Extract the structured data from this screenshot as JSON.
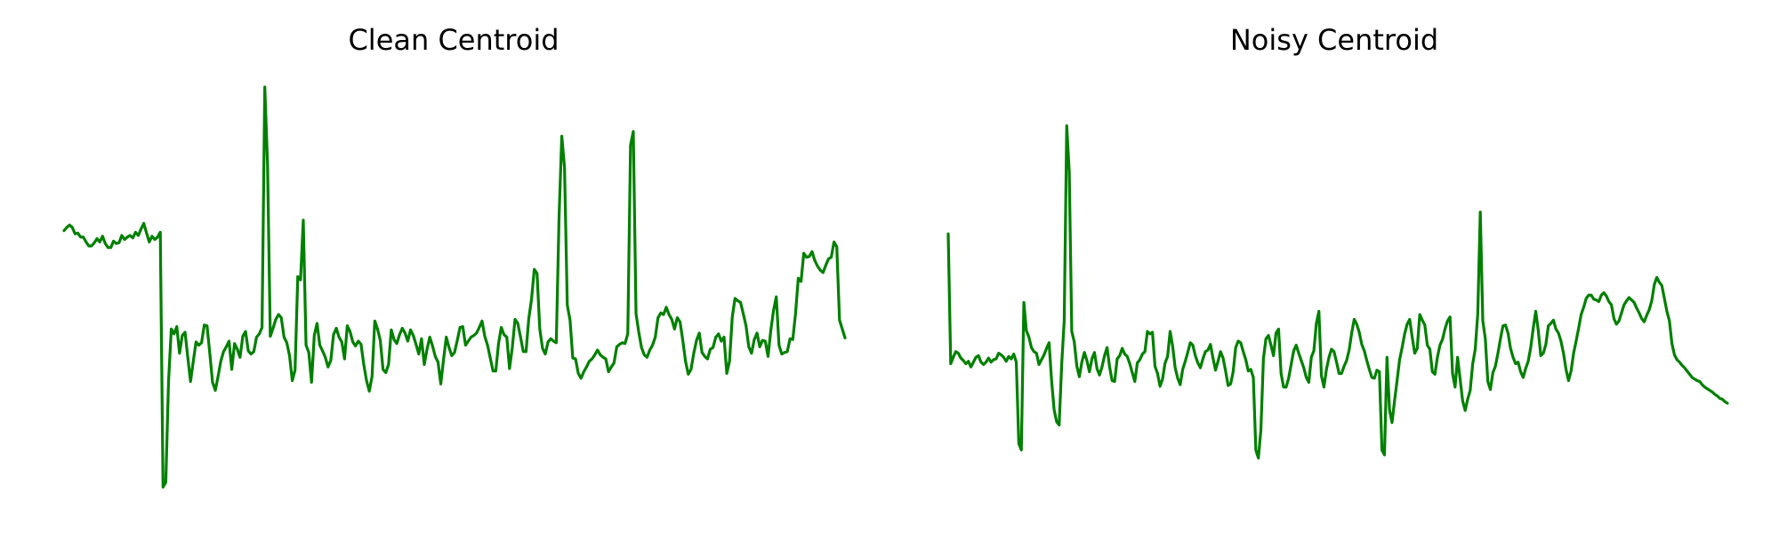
{
  "line_color": "#008000",
  "chart_data": [
    {
      "type": "line",
      "title": "Clean Centroid",
      "xlabel": "",
      "ylabel": "",
      "axes_visible": false,
      "grid": false,
      "ylim": [
        0,
        1
      ],
      "series": [
        {
          "values": [
            0.644,
            0.652,
            0.658,
            0.652,
            0.636,
            0.638,
            0.628,
            0.628,
            0.616,
            0.606,
            0.606,
            0.614,
            0.624,
            0.616,
            0.63,
            0.612,
            0.602,
            0.602,
            0.618,
            0.612,
            0.614,
            0.632,
            0.622,
            0.628,
            0.632,
            0.626,
            0.64,
            0.632,
            0.648,
            0.662,
            0.638,
            0.616,
            0.63,
            0.622,
            0.628,
            0.64,
            0.008,
            0.02,
            0.27,
            0.4,
            0.388,
            0.406,
            0.34,
            0.384,
            0.392,
            0.33,
            0.27,
            0.32,
            0.368,
            0.36,
            0.366,
            0.41,
            0.408,
            0.34,
            0.268,
            0.248,
            0.282,
            0.32,
            0.344,
            0.356,
            0.37,
            0.3,
            0.364,
            0.35,
            0.33,
            0.382,
            0.394,
            0.346,
            0.338,
            0.344,
            0.38,
            0.388,
            0.404,
            1.0,
            0.81,
            0.382,
            0.402,
            0.424,
            0.436,
            0.428,
            0.38,
            0.366,
            0.334,
            0.272,
            0.298,
            0.53,
            0.522,
            0.67,
            0.36,
            0.342,
            0.268,
            0.384,
            0.414,
            0.36,
            0.346,
            0.33,
            0.306,
            0.322,
            0.386,
            0.402,
            0.38,
            0.368,
            0.326,
            0.408,
            0.394,
            0.368,
            0.358,
            0.37,
            0.362,
            0.312,
            0.272,
            0.246,
            0.282,
            0.42,
            0.4,
            0.372,
            0.3,
            0.292,
            0.312,
            0.398,
            0.374,
            0.364,
            0.386,
            0.402,
            0.39,
            0.37,
            0.398,
            0.384,
            0.362,
            0.338,
            0.376,
            0.312,
            0.35,
            0.38,
            0.358,
            0.332,
            0.318,
            0.264,
            0.324,
            0.38,
            0.354,
            0.334,
            0.342,
            0.372,
            0.404,
            0.406,
            0.36,
            0.37,
            0.38,
            0.384,
            0.39,
            0.404,
            0.42,
            0.382,
            0.36,
            0.328,
            0.296,
            0.296,
            0.364,
            0.404,
            0.386,
            0.38,
            0.302,
            0.354,
            0.424,
            0.414,
            0.38,
            0.344,
            0.344,
            0.426,
            0.474,
            0.548,
            0.538,
            0.4,
            0.352,
            0.338,
            0.368,
            0.376,
            0.37,
            0.366,
            0.676,
            0.878,
            0.8,
            0.46,
            0.422,
            0.328,
            0.326,
            0.29,
            0.278,
            0.294,
            0.306,
            0.32,
            0.326,
            0.336,
            0.348,
            0.336,
            0.33,
            0.326,
            0.294,
            0.306,
            0.316,
            0.356,
            0.362,
            0.366,
            0.364,
            0.388,
            0.856,
            0.89,
            0.438,
            0.392,
            0.354,
            0.336,
            0.33,
            0.348,
            0.36,
            0.38,
            0.428,
            0.44,
            0.436,
            0.454,
            0.436,
            0.424,
            0.4,
            0.428,
            0.418,
            0.372,
            0.32,
            0.288,
            0.3,
            0.34,
            0.372,
            0.39,
            0.342,
            0.332,
            0.326,
            0.35,
            0.354,
            0.38,
            0.388,
            0.37,
            0.38,
            0.29,
            0.32,
            0.43,
            0.476,
            0.47,
            0.466,
            0.438,
            0.408,
            0.356,
            0.34,
            0.374,
            0.39,
            0.356,
            0.372,
            0.37,
            0.332,
            0.396,
            0.446,
            0.48,
            0.36,
            0.338,
            0.342,
            0.344,
            0.376,
            0.374,
            0.438,
            0.526,
            0.518,
            0.588,
            0.578,
            0.58,
            0.592,
            0.57,
            0.556,
            0.546,
            0.54,
            0.558,
            0.574,
            0.578,
            0.616,
            0.604,
            0.422,
            0.4,
            0.378
          ]
        }
      ]
    },
    {
      "type": "line",
      "title": "Noisy Centroid",
      "xlabel": "",
      "ylabel": "",
      "axes_visible": false,
      "grid": false,
      "ylim": [
        0,
        1
      ],
      "series": [
        {
          "values": [
            0.636,
            0.314,
            0.33,
            0.344,
            0.34,
            0.328,
            0.322,
            0.314,
            0.32,
            0.306,
            0.318,
            0.33,
            0.334,
            0.318,
            0.312,
            0.318,
            0.328,
            0.318,
            0.324,
            0.326,
            0.34,
            0.336,
            0.33,
            0.32,
            0.332,
            0.326,
            0.338,
            0.318,
            0.116,
            0.1,
            0.466,
            0.396,
            0.38,
            0.354,
            0.344,
            0.34,
            0.312,
            0.324,
            0.336,
            0.352,
            0.366,
            0.272,
            0.2,
            0.17,
            0.162,
            0.312,
            0.42,
            0.904,
            0.79,
            0.394,
            0.368,
            0.308,
            0.282,
            0.318,
            0.342,
            0.322,
            0.294,
            0.326,
            0.342,
            0.302,
            0.286,
            0.306,
            0.334,
            0.354,
            0.306,
            0.272,
            0.27,
            0.326,
            0.334,
            0.352,
            0.338,
            0.332,
            0.314,
            0.292,
            0.27,
            0.316,
            0.324,
            0.338,
            0.344,
            0.394,
            0.388,
            0.392,
            0.308,
            0.29,
            0.258,
            0.276,
            0.316,
            0.332,
            0.394,
            0.358,
            0.304,
            0.278,
            0.262,
            0.3,
            0.32,
            0.342,
            0.366,
            0.36,
            0.334,
            0.316,
            0.304,
            0.326,
            0.344,
            0.348,
            0.362,
            0.328,
            0.298,
            0.32,
            0.344,
            0.328,
            0.296,
            0.26,
            0.264,
            0.294,
            0.354,
            0.37,
            0.366,
            0.344,
            0.324,
            0.296,
            0.3,
            0.28,
            0.1,
            0.08,
            0.15,
            0.326,
            0.376,
            0.384,
            0.36,
            0.334,
            0.39,
            0.4,
            0.29,
            0.256,
            0.256,
            0.278,
            0.312,
            0.346,
            0.36,
            0.34,
            0.322,
            0.304,
            0.28,
            0.268,
            0.33,
            0.346,
            0.414,
            0.444,
            0.284,
            0.256,
            0.3,
            0.33,
            0.35,
            0.344,
            0.318,
            0.29,
            0.29,
            0.308,
            0.322,
            0.348,
            0.39,
            0.424,
            0.412,
            0.392,
            0.362,
            0.346,
            0.322,
            0.3,
            0.28,
            0.278,
            0.298,
            0.294,
            0.1,
            0.088,
            0.33,
            0.2,
            0.168,
            0.222,
            0.272,
            0.324,
            0.354,
            0.388,
            0.412,
            0.424,
            0.38,
            0.34,
            0.352,
            0.436,
            0.422,
            0.41,
            0.36,
            0.35,
            0.294,
            0.288,
            0.33,
            0.36,
            0.374,
            0.4,
            0.42,
            0.43,
            0.29,
            0.256,
            0.33,
            0.276,
            0.222,
            0.198,
            0.226,
            0.248,
            0.314,
            0.35,
            0.438,
            0.69,
            0.42,
            0.376,
            0.27,
            0.25,
            0.292,
            0.308,
            0.34,
            0.376,
            0.408,
            0.41,
            0.39,
            0.352,
            0.33,
            0.314,
            0.318,
            0.294,
            0.28,
            0.302,
            0.32,
            0.354,
            0.402,
            0.444,
            0.396,
            0.334,
            0.34,
            0.362,
            0.408,
            0.414,
            0.422,
            0.4,
            0.39,
            0.37,
            0.34,
            0.3,
            0.272,
            0.296,
            0.34,
            0.37,
            0.402,
            0.436,
            0.454,
            0.476,
            0.484,
            0.484,
            0.474,
            0.472,
            0.468,
            0.484,
            0.49,
            0.482,
            0.468,
            0.46,
            0.426,
            0.412,
            0.42,
            0.44,
            0.46,
            0.47,
            0.478,
            0.472,
            0.466,
            0.452,
            0.44,
            0.426,
            0.418,
            0.434,
            0.448,
            0.47,
            0.51,
            0.528,
            0.516,
            0.508,
            0.476,
            0.444,
            0.42,
            0.364,
            0.336,
            0.324,
            0.318,
            0.31,
            0.304,
            0.296,
            0.288,
            0.28,
            0.276,
            0.272,
            0.27,
            0.262,
            0.256,
            0.252,
            0.248,
            0.244,
            0.238,
            0.234,
            0.228,
            0.226,
            0.22,
            0.216
          ]
        }
      ]
    }
  ]
}
